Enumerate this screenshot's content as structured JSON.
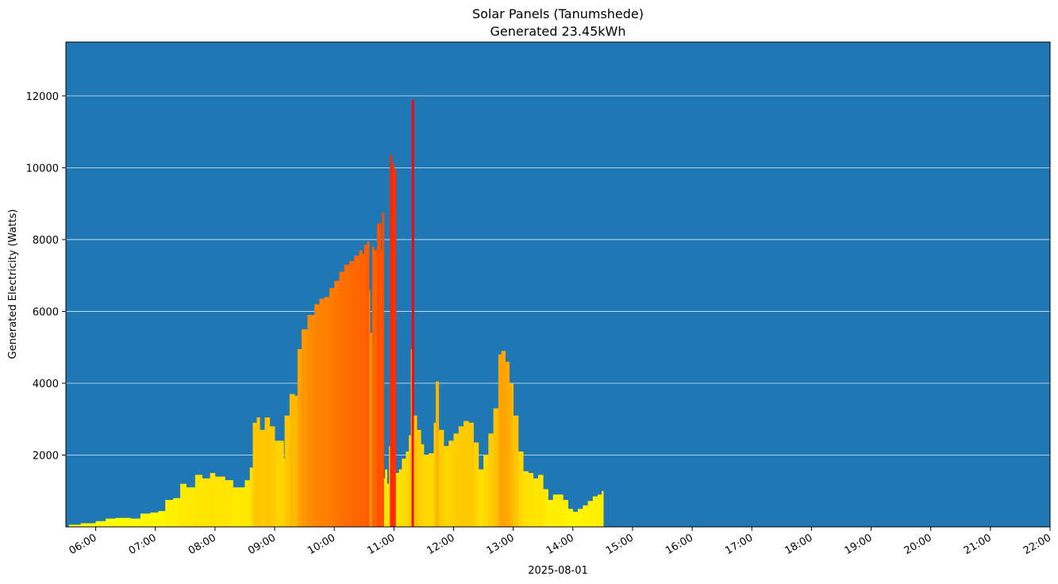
{
  "chart_data": {
    "type": "bar",
    "title": "Solar Panels (Tanumshede)",
    "subtitle": "Generated 23.45kWh",
    "xlabel": "2025-08-01",
    "ylabel": "Generated Electricity (Watts)",
    "xlim": [
      "05:30",
      "22:00"
    ],
    "ylim": [
      0,
      13500
    ],
    "y_ticks": [
      2000,
      4000,
      6000,
      8000,
      10000,
      12000
    ],
    "x_ticks": [
      "06:00",
      "07:00",
      "08:00",
      "09:00",
      "10:00",
      "11:00",
      "12:00",
      "13:00",
      "14:00",
      "15:00",
      "16:00",
      "17:00",
      "18:00",
      "19:00",
      "20:00",
      "21:00",
      "22:00"
    ],
    "grid": "horizontal",
    "background_color": "#1f77b4",
    "color_scale": [
      "#ffff00",
      "#ffa500",
      "#ff0000"
    ],
    "points": [
      {
        "t": "05:33",
        "w": 60
      },
      {
        "t": "05:45",
        "w": 100
      },
      {
        "t": "06:00",
        "w": 160
      },
      {
        "t": "06:10",
        "w": 230
      },
      {
        "t": "06:20",
        "w": 250
      },
      {
        "t": "06:35",
        "w": 230
      },
      {
        "t": "06:45",
        "w": 370
      },
      {
        "t": "06:55",
        "w": 400
      },
      {
        "t": "07:03",
        "w": 440
      },
      {
        "t": "07:10",
        "w": 750
      },
      {
        "t": "07:18",
        "w": 800
      },
      {
        "t": "07:25",
        "w": 1200
      },
      {
        "t": "07:31",
        "w": 1100
      },
      {
        "t": "07:40",
        "w": 1450
      },
      {
        "t": "07:47",
        "w": 1350
      },
      {
        "t": "07:55",
        "w": 1500
      },
      {
        "t": "08:00",
        "w": 1400
      },
      {
        "t": "08:10",
        "w": 1300
      },
      {
        "t": "08:18",
        "w": 1100
      },
      {
        "t": "08:30",
        "w": 1300
      },
      {
        "t": "08:35",
        "w": 1650
      },
      {
        "t": "08:38",
        "w": 2900
      },
      {
        "t": "08:42",
        "w": 3050
      },
      {
        "t": "08:45",
        "w": 2700
      },
      {
        "t": "08:50",
        "w": 3050
      },
      {
        "t": "08:55",
        "w": 2800
      },
      {
        "t": "09:00",
        "w": 2400
      },
      {
        "t": "09:05",
        "w": 2400
      },
      {
        "t": "09:09",
        "w": 1900
      },
      {
        "t": "09:10",
        "w": 3100
      },
      {
        "t": "09:15",
        "w": 3700
      },
      {
        "t": "09:20",
        "w": 3650
      },
      {
        "t": "09:23",
        "w": 4950
      },
      {
        "t": "09:27",
        "w": 5500
      },
      {
        "t": "09:33",
        "w": 5900
      },
      {
        "t": "09:40",
        "w": 6200
      },
      {
        "t": "09:45",
        "w": 6350
      },
      {
        "t": "09:50",
        "w": 6400
      },
      {
        "t": "09:55",
        "w": 6650
      },
      {
        "t": "10:00",
        "w": 6850
      },
      {
        "t": "10:05",
        "w": 7100
      },
      {
        "t": "10:10",
        "w": 7300
      },
      {
        "t": "10:15",
        "w": 7400
      },
      {
        "t": "10:20",
        "w": 7550
      },
      {
        "t": "10:25",
        "w": 7700
      },
      {
        "t": "10:28",
        "w": 7600
      },
      {
        "t": "10:30",
        "w": 7850
      },
      {
        "t": "10:33",
        "w": 7950
      },
      {
        "t": "10:35",
        "w": 6600
      },
      {
        "t": "10:36",
        "w": 5400
      },
      {
        "t": "10:38",
        "w": 7800
      },
      {
        "t": "10:40",
        "w": 7700
      },
      {
        "t": "10:43",
        "w": 8450
      },
      {
        "t": "10:45",
        "w": 8450
      },
      {
        "t": "10:47",
        "w": 7700
      },
      {
        "t": "10:48",
        "w": 8750
      },
      {
        "t": "10:50",
        "w": 1350
      },
      {
        "t": "10:51",
        "w": 1600
      },
      {
        "t": "10:53",
        "w": 1200
      },
      {
        "t": "10:55",
        "w": 2250
      },
      {
        "t": "10:56",
        "w": 10350
      },
      {
        "t": "10:58",
        "w": 10100
      },
      {
        "t": "11:00",
        "w": 9950
      },
      {
        "t": "11:02",
        "w": 1500
      },
      {
        "t": "11:05",
        "w": 1600
      },
      {
        "t": "11:08",
        "w": 1900
      },
      {
        "t": "11:12",
        "w": 2100
      },
      {
        "t": "11:15",
        "w": 2550
      },
      {
        "t": "11:17",
        "w": 4950
      },
      {
        "t": "11:18",
        "w": 11900
      },
      {
        "t": "11:20",
        "w": 3100
      },
      {
        "t": "11:23",
        "w": 2700
      },
      {
        "t": "11:27",
        "w": 2300
      },
      {
        "t": "11:30",
        "w": 2000
      },
      {
        "t": "11:35",
        "w": 2050
      },
      {
        "t": "11:40",
        "w": 2900
      },
      {
        "t": "11:42",
        "w": 4050
      },
      {
        "t": "11:45",
        "w": 2700
      },
      {
        "t": "11:50",
        "w": 2250
      },
      {
        "t": "11:55",
        "w": 2400
      },
      {
        "t": "12:00",
        "w": 2600
      },
      {
        "t": "12:05",
        "w": 2800
      },
      {
        "t": "12:10",
        "w": 2950
      },
      {
        "t": "12:15",
        "w": 2900
      },
      {
        "t": "12:20",
        "w": 2350
      },
      {
        "t": "12:25",
        "w": 1600
      },
      {
        "t": "12:30",
        "w": 2000
      },
      {
        "t": "12:35",
        "w": 2600
      },
      {
        "t": "12:40",
        "w": 3300
      },
      {
        "t": "12:45",
        "w": 4800
      },
      {
        "t": "12:48",
        "w": 4900
      },
      {
        "t": "12:52",
        "w": 4600
      },
      {
        "t": "12:56",
        "w": 4000
      },
      {
        "t": "13:00",
        "w": 3100
      },
      {
        "t": "13:05",
        "w": 2100
      },
      {
        "t": "13:10",
        "w": 1550
      },
      {
        "t": "13:15",
        "w": 1500
      },
      {
        "t": "13:20",
        "w": 1350
      },
      {
        "t": "13:25",
        "w": 1450
      },
      {
        "t": "13:30",
        "w": 1050
      },
      {
        "t": "13:35",
        "w": 750
      },
      {
        "t": "13:40",
        "w": 900
      },
      {
        "t": "13:45",
        "w": 900
      },
      {
        "t": "13:50",
        "w": 750
      },
      {
        "t": "13:55",
        "w": 500
      },
      {
        "t": "14:00",
        "w": 420
      },
      {
        "t": "14:05",
        "w": 500
      },
      {
        "t": "14:10",
        "w": 600
      },
      {
        "t": "14:15",
        "w": 720
      },
      {
        "t": "14:20",
        "w": 850
      },
      {
        "t": "14:25",
        "w": 900
      },
      {
        "t": "14:29",
        "w": 1000
      }
    ]
  }
}
